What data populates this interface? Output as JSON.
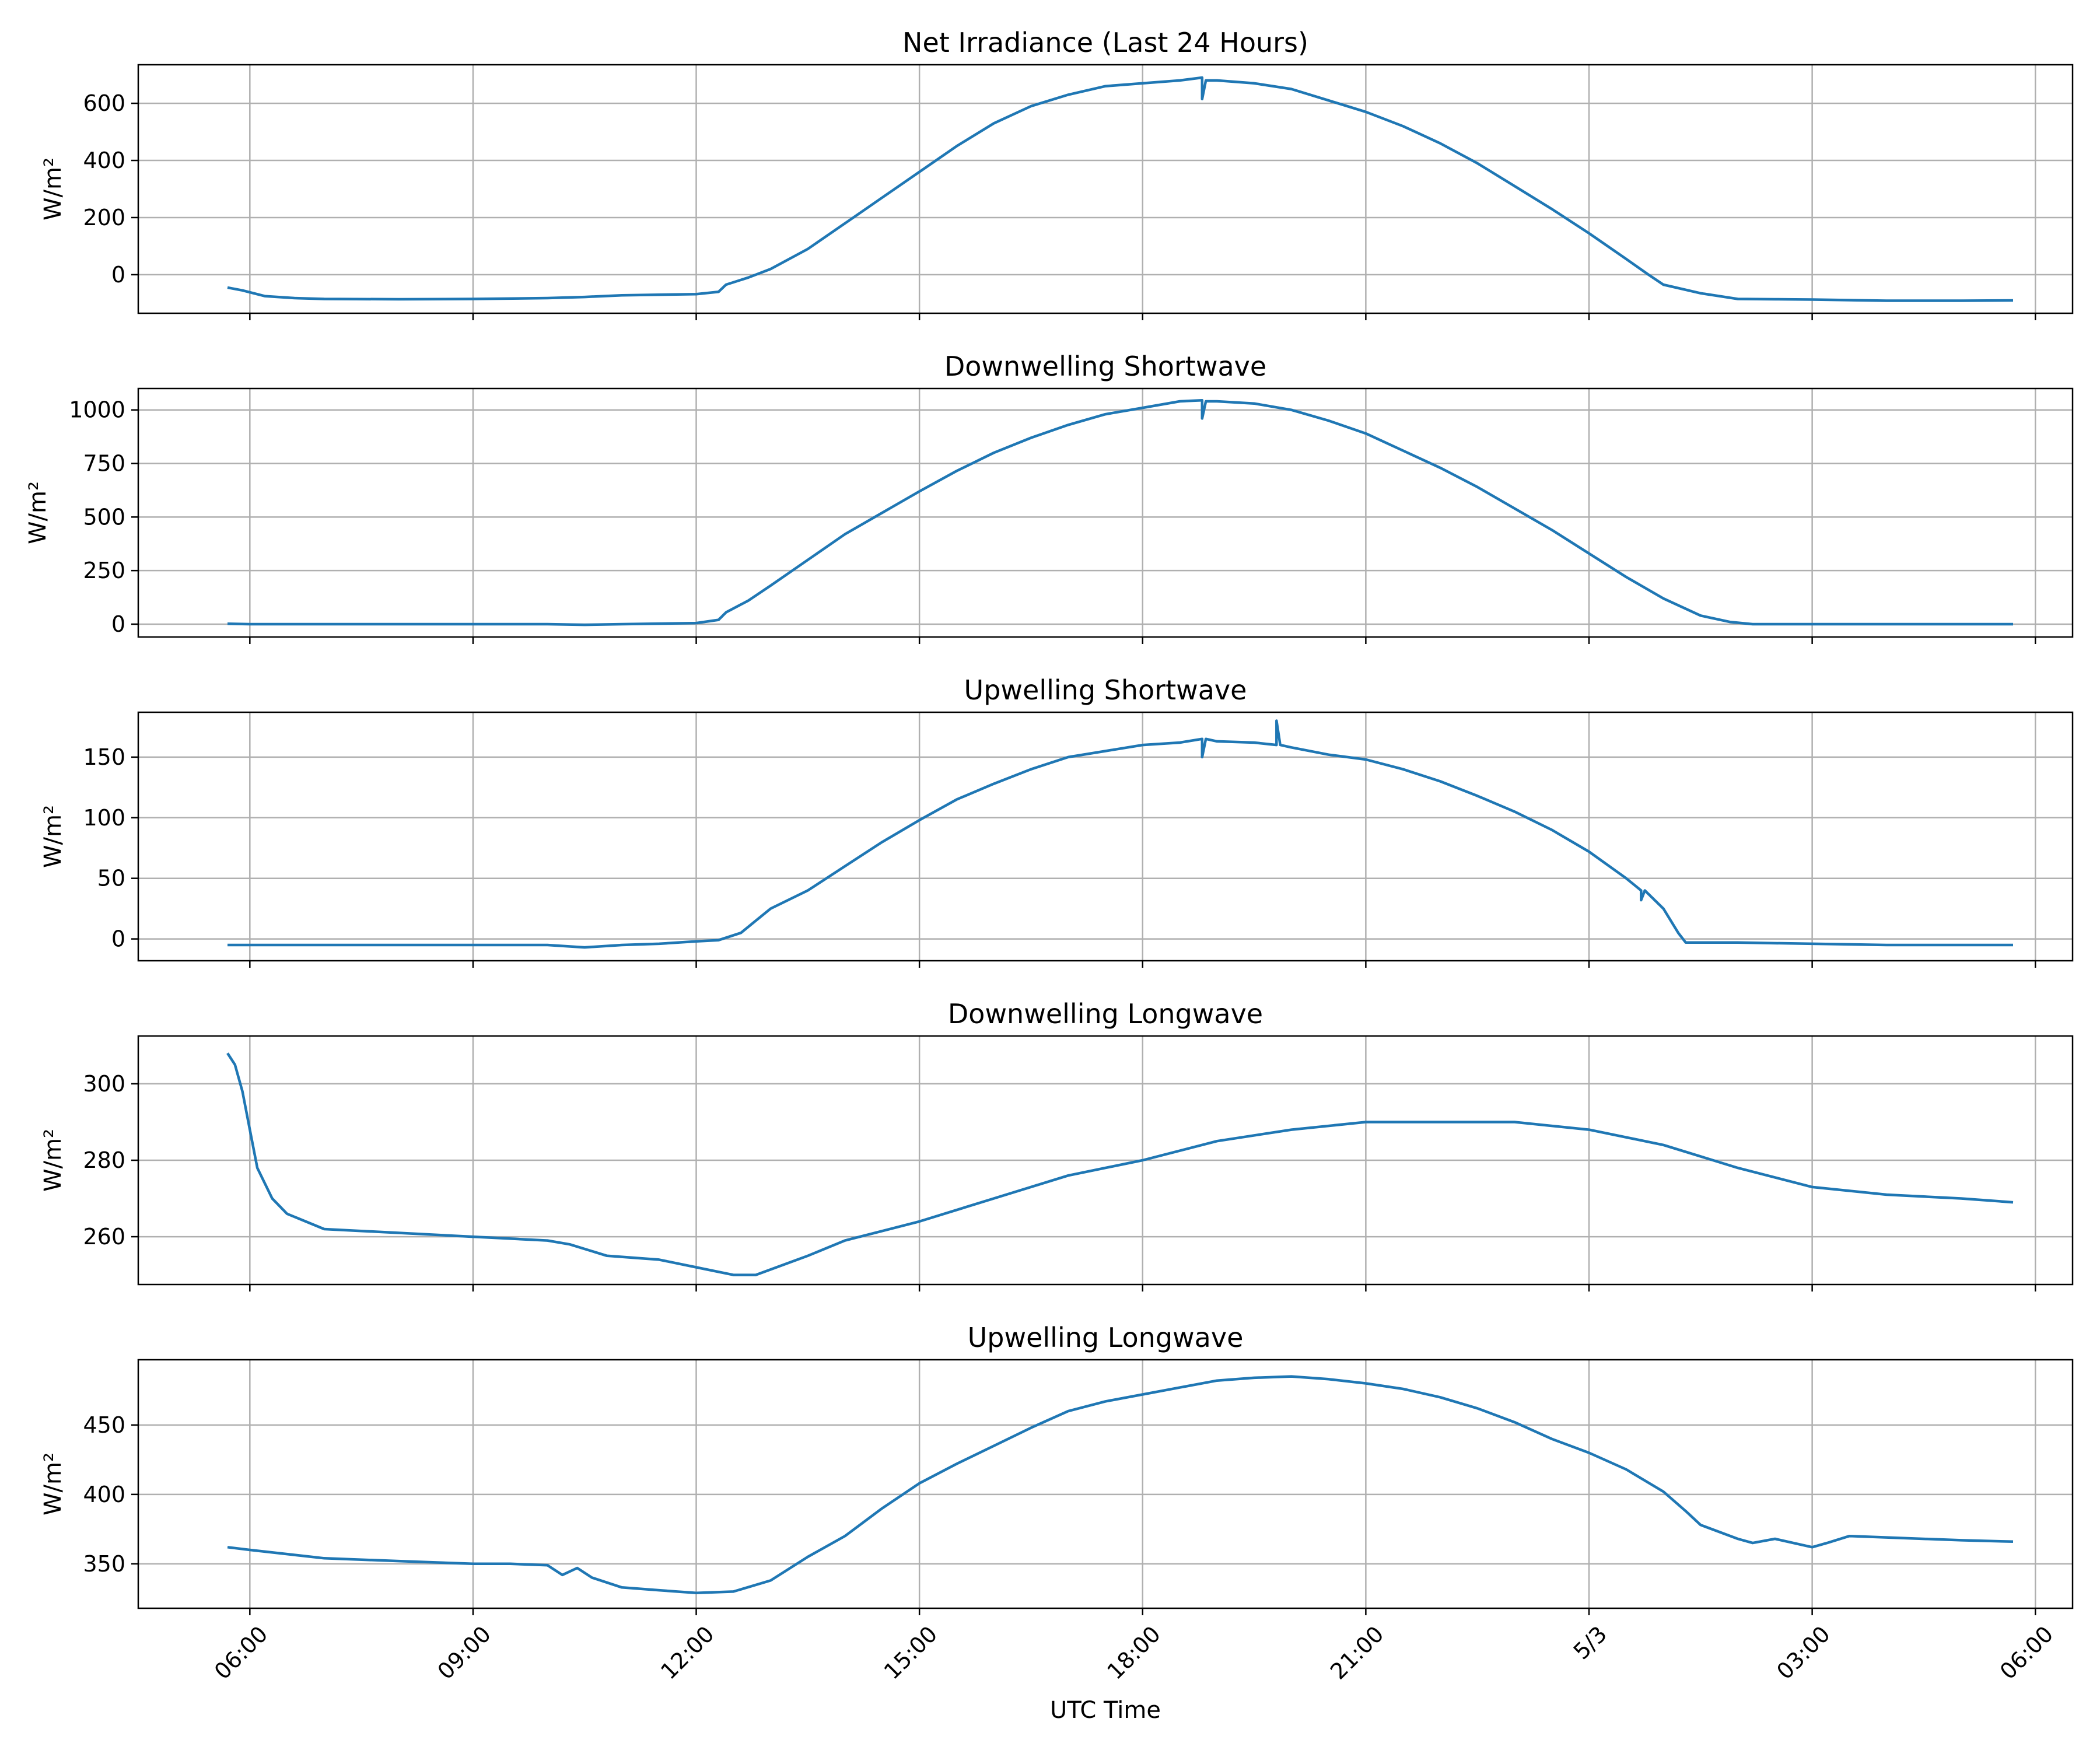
{
  "figure": {
    "xlabel": "UTC Time",
    "x_tick_labels": [
      "06:00",
      "09:00",
      "12:00",
      "15:00",
      "18:00",
      "21:00",
      "5/3",
      "03:00",
      "06:00"
    ],
    "line_color": "#1f77b4",
    "grid": true
  },
  "chart_data": [
    {
      "type": "line",
      "title": "Net Irradiance (Last 24 Hours)",
      "ylabel": "W/m²",
      "ylim": [
        -135,
        735
      ],
      "yticks": [
        0,
        200,
        400,
        600
      ],
      "xlim": [
        4.5,
        30.5
      ],
      "series": [
        {
          "x": [
            5.7,
            5.9,
            6.2,
            6.6,
            7,
            8,
            9,
            10,
            10.5,
            11,
            12,
            12.3,
            12.4,
            12.7,
            13,
            13.5,
            14,
            14.5,
            15,
            15.5,
            16,
            16.5,
            17,
            17.5,
            18,
            18.5,
            18.8,
            18.8,
            18.85,
            19,
            19.5,
            20,
            20.5,
            21,
            21.5,
            22,
            22.5,
            23,
            23.5,
            24,
            24.5,
            24.8,
            25,
            25.5,
            26,
            26.5,
            27,
            28,
            29,
            29.7
          ],
          "y": [
            -45,
            -55,
            -75,
            -82,
            -85,
            -86,
            -85,
            -82,
            -78,
            -72,
            -68,
            -60,
            -35,
            -10,
            20,
            90,
            180,
            270,
            360,
            450,
            530,
            590,
            630,
            660,
            670,
            680,
            690,
            615,
            680,
            680,
            670,
            650,
            610,
            570,
            520,
            460,
            390,
            310,
            230,
            145,
            55,
            0,
            -35,
            -65,
            -85,
            -86,
            -87,
            -91,
            -91,
            -90
          ]
        }
      ]
    },
    {
      "type": "line",
      "title": "Downwelling Shortwave",
      "ylabel": "W/m²",
      "ylim": [
        -60,
        1100
      ],
      "yticks": [
        0,
        250,
        500,
        750,
        1000
      ],
      "xlim": [
        4.5,
        30.5
      ],
      "series": [
        {
          "x": [
            5.7,
            6,
            8,
            10,
            10.5,
            11,
            12,
            12.3,
            12.4,
            12.7,
            13,
            13.5,
            14,
            14.5,
            15,
            15.5,
            16,
            16.5,
            17,
            17.5,
            18,
            18.5,
            18.8,
            18.8,
            18.85,
            19,
            19.5,
            20,
            20.5,
            21,
            21.5,
            22,
            22.5,
            23,
            23.5,
            24,
            24.5,
            25,
            25.5,
            25.9,
            26.2,
            26.5,
            27,
            28,
            29,
            29.7
          ],
          "y": [
            2,
            0,
            0,
            0,
            -3,
            0,
            5,
            20,
            55,
            110,
            180,
            300,
            420,
            520,
            620,
            715,
            800,
            870,
            930,
            980,
            1010,
            1040,
            1045,
            960,
            1040,
            1040,
            1030,
            1000,
            950,
            890,
            810,
            730,
            640,
            540,
            440,
            330,
            220,
            120,
            40,
            10,
            0,
            0,
            0,
            0,
            0,
            0
          ]
        }
      ]
    },
    {
      "type": "line",
      "title": "Upwelling Shortwave",
      "ylabel": "W/m²",
      "ylim": [
        -18,
        187
      ],
      "yticks": [
        0,
        50,
        100,
        150
      ],
      "xlim": [
        4.5,
        30.5
      ],
      "series": [
        {
          "x": [
            5.7,
            7,
            9,
            10,
            10.5,
            11,
            11.5,
            12,
            12.3,
            12.6,
            12.8,
            13,
            13.5,
            14,
            14.5,
            15,
            15.5,
            16,
            16.5,
            17,
            17.5,
            18,
            18.5,
            18.8,
            18.8,
            18.85,
            19,
            19.5,
            19.8,
            19.8,
            19.85,
            20,
            20.5,
            21,
            21.5,
            22,
            22.5,
            23,
            23.5,
            24,
            24.5,
            24.7,
            24.7,
            24.75,
            25,
            25.2,
            25.3,
            25.5,
            26,
            27,
            28,
            29,
            29.7
          ],
          "y": [
            -5,
            -5,
            -5,
            -5,
            -7,
            -5,
            -4,
            -2,
            -1,
            5,
            15,
            25,
            40,
            60,
            80,
            98,
            115,
            128,
            140,
            150,
            155,
            160,
            162,
            165,
            150,
            165,
            163,
            162,
            160,
            180,
            160,
            158,
            152,
            148,
            140,
            130,
            118,
            105,
            90,
            72,
            50,
            40,
            32,
            40,
            25,
            5,
            -3,
            -3,
            -3,
            -4,
            -5,
            -5,
            -5
          ]
        }
      ]
    },
    {
      "type": "line",
      "title": "Downwelling Longwave",
      "ylabel": "W/m²",
      "ylim": [
        247.5,
        312.5
      ],
      "yticks": [
        260,
        280,
        300
      ],
      "xlim": [
        4.5,
        30.5
      ],
      "series": [
        {
          "x": [
            5.7,
            5.8,
            5.9,
            6,
            6.1,
            6.3,
            6.5,
            7,
            8,
            9,
            10,
            10.3,
            10.8,
            11.5,
            12,
            12.5,
            12.8,
            13.5,
            14,
            15,
            16,
            17,
            18,
            19,
            20,
            21,
            22,
            23,
            24,
            25,
            26,
            27,
            28,
            29,
            29.7
          ],
          "y": [
            308,
            305,
            298,
            288,
            278,
            270,
            266,
            262,
            261,
            260,
            259,
            258,
            255,
            254,
            252,
            250,
            250,
            255,
            259,
            264,
            270,
            276,
            280,
            285,
            288,
            290,
            290,
            290,
            288,
            284,
            278,
            273,
            271,
            270,
            269
          ]
        }
      ]
    },
    {
      "type": "line",
      "title": "Upwelling Longwave",
      "ylabel": "W/m²",
      "ylim": [
        318,
        497
      ],
      "yticks": [
        350,
        400,
        450
      ],
      "xlim": [
        4.5,
        30.5
      ],
      "series": [
        {
          "x": [
            5.7,
            6,
            7,
            8,
            9,
            9.5,
            10,
            10.2,
            10.4,
            10.6,
            11,
            11.5,
            12,
            12.5,
            13,
            13.5,
            14,
            14.5,
            15,
            15.5,
            16,
            16.5,
            17,
            17.5,
            18,
            18.5,
            19,
            19.5,
            20,
            20.5,
            21,
            21.5,
            22,
            22.5,
            23,
            23.5,
            24,
            24.5,
            25,
            25.3,
            25.5,
            26,
            26.2,
            26.5,
            27,
            27.2,
            27.5,
            28,
            29,
            29.7
          ],
          "y": [
            362,
            360,
            354,
            352,
            350,
            350,
            349,
            342,
            347,
            340,
            333,
            331,
            329,
            330,
            338,
            355,
            370,
            390,
            408,
            422,
            435,
            448,
            460,
            467,
            472,
            477,
            482,
            484,
            485,
            483,
            480,
            476,
            470,
            462,
            452,
            440,
            430,
            418,
            402,
            388,
            378,
            368,
            365,
            368,
            362,
            365,
            370,
            369,
            367,
            366
          ]
        }
      ]
    }
  ]
}
